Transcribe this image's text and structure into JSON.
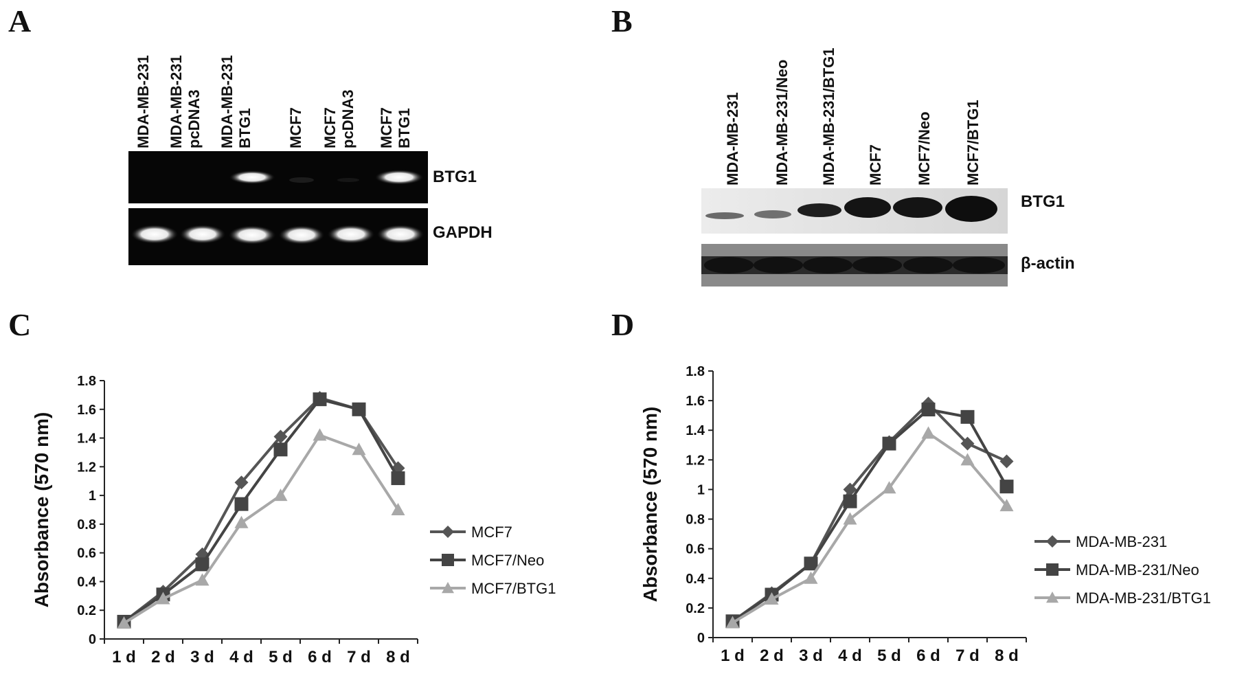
{
  "panels": {
    "a": {
      "letter": "A",
      "lanes": [
        "MDA-MB-231",
        "MDA-MB-231\npcDNA3",
        "MDA-MB-231\nBTG1",
        "MCF7",
        "MCF7\npcDNA3",
        "MCF7\nBTG1"
      ],
      "bands": {
        "top": "BTG1",
        "bottom": "GAPDH"
      }
    },
    "b": {
      "letter": "B",
      "lanes": [
        "MDA-MB-231",
        "MDA-MB-231/Neo",
        "MDA-MB-231/BTG1",
        "MCF7",
        "MCF7/Neo",
        "MCF7/BTG1"
      ],
      "bands": {
        "top": "BTG1",
        "bottom": "β-actin"
      }
    },
    "c": {
      "letter": "C"
    },
    "d": {
      "letter": "D"
    }
  },
  "chart_data": [
    {
      "type": "line",
      "panel": "C",
      "categories": [
        "1 d",
        "2 d",
        "3 d",
        "4 d",
        "5 d",
        "6 d",
        "7 d",
        "8 d"
      ],
      "ylabel": "Absorbance (570 nm)",
      "ylim": [
        0,
        1.8
      ],
      "yticks": [
        "0",
        "0.2",
        "0.4",
        "0.6",
        "0.8",
        "1",
        "1.2",
        "1.4",
        "1.6",
        "1.8"
      ],
      "legend_position": "right",
      "series": [
        {
          "name": "MCF7",
          "marker": "diamond",
          "color": "#555555",
          "values": [
            0.12,
            0.33,
            0.59,
            1.09,
            1.41,
            1.68,
            1.6,
            1.19
          ]
        },
        {
          "name": "MCF7/Neo",
          "marker": "square",
          "color": "#444444",
          "values": [
            0.12,
            0.31,
            0.52,
            0.94,
            1.32,
            1.67,
            1.6,
            1.12
          ]
        },
        {
          "name": "MCF7/BTG1",
          "marker": "triangle",
          "color": "#a8a8a8",
          "values": [
            0.11,
            0.28,
            0.41,
            0.81,
            1.0,
            1.42,
            1.32,
            0.9
          ]
        }
      ]
    },
    {
      "type": "line",
      "panel": "D",
      "categories": [
        "1 d",
        "2 d",
        "3 d",
        "4 d",
        "5 d",
        "6 d",
        "7 d",
        "8 d"
      ],
      "ylabel": "Absorbance (570 nm)",
      "ylim": [
        0,
        1.8
      ],
      "yticks": [
        "0",
        "0.2",
        "0.4",
        "0.6",
        "0.8",
        "1",
        "1.2",
        "1.4",
        "1.6",
        "1.8"
      ],
      "legend_position": "right",
      "series": [
        {
          "name": "MDA-MB-231",
          "marker": "diamond",
          "color": "#555555",
          "values": [
            0.11,
            0.3,
            0.5,
            1.0,
            1.32,
            1.58,
            1.31,
            1.19
          ]
        },
        {
          "name": "MDA-MB-231/Neo",
          "marker": "square",
          "color": "#444444",
          "values": [
            0.11,
            0.29,
            0.5,
            0.92,
            1.31,
            1.54,
            1.49,
            1.02
          ]
        },
        {
          "name": "MDA-MB-231/BTG1",
          "marker": "triangle",
          "color": "#a8a8a8",
          "values": [
            0.1,
            0.26,
            0.4,
            0.8,
            1.01,
            1.38,
            1.2,
            0.89
          ]
        }
      ]
    }
  ]
}
